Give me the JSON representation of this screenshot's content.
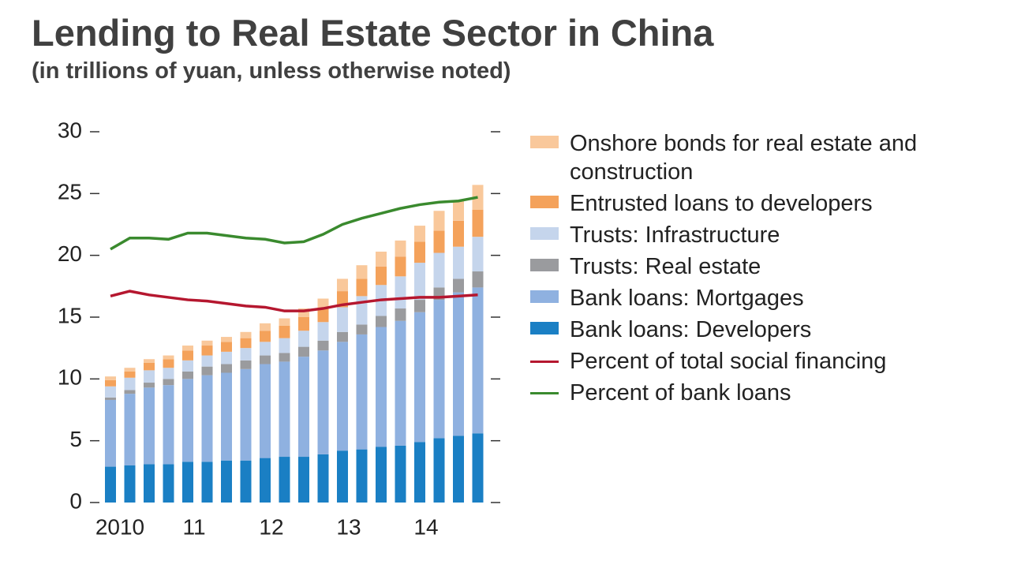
{
  "chart_data": {
    "type": "bar",
    "title": "Lending to Real Estate Sector in China",
    "subtitle": "(in trillions of yuan, unless otherwise noted)",
    "categories": [
      "2010",
      null,
      null,
      null,
      "11",
      null,
      null,
      null,
      "12",
      null,
      null,
      null,
      "13",
      null,
      null,
      null,
      "14",
      null,
      null,
      null
    ],
    "ylim": [
      0,
      30
    ],
    "yticks": [
      0,
      5,
      10,
      15,
      20,
      25,
      30
    ],
    "stacked": true,
    "series": [
      {
        "name": "Onshore bonds for real estate and construction",
        "color": "#f9c89b",
        "values": [
          0.3,
          0.3,
          0.3,
          0.3,
          0.4,
          0.4,
          0.4,
          0.5,
          0.6,
          0.6,
          0.7,
          0.8,
          1.0,
          1.1,
          1.2,
          1.3,
          1.3,
          1.6,
          1.6,
          2.0
        ]
      },
      {
        "name": "Entrusted loans to developers",
        "color": "#f4a25b",
        "values": [
          0.5,
          0.5,
          0.6,
          0.7,
          0.8,
          0.8,
          0.8,
          0.8,
          0.9,
          1.0,
          1.1,
          1.1,
          1.3,
          1.4,
          1.5,
          1.6,
          1.7,
          1.8,
          2.1,
          2.2
        ]
      },
      {
        "name": "Trusts: Infrastructure",
        "color": "#c5d5ec",
        "values": [
          0.9,
          1.0,
          1.0,
          0.9,
          0.9,
          0.9,
          1.0,
          1.0,
          1.1,
          1.2,
          1.3,
          1.5,
          2.0,
          2.3,
          2.5,
          2.6,
          3.0,
          2.8,
          2.6,
          2.8
        ]
      },
      {
        "name": "Trusts: Real estate",
        "color": "#9a9b9e",
        "values": [
          0.2,
          0.3,
          0.4,
          0.5,
          0.6,
          0.7,
          0.7,
          0.7,
          0.7,
          0.7,
          0.8,
          0.8,
          0.8,
          0.8,
          0.9,
          1.0,
          1.0,
          1.0,
          1.1,
          1.3
        ]
      },
      {
        "name": "Bank loans: Mortgages",
        "color": "#8fb1e0",
        "values": [
          5.4,
          5.8,
          6.2,
          6.4,
          6.7,
          7.0,
          7.1,
          7.4,
          7.6,
          7.7,
          8.1,
          8.4,
          8.8,
          9.3,
          9.7,
          10.1,
          10.5,
          11.2,
          11.6,
          11.8
        ]
      },
      {
        "name": "Bank loans: Developers",
        "color": "#1a7fc4",
        "values": [
          2.9,
          3.0,
          3.1,
          3.1,
          3.3,
          3.3,
          3.4,
          3.4,
          3.6,
          3.7,
          3.7,
          3.9,
          4.2,
          4.3,
          4.5,
          4.6,
          4.9,
          5.2,
          5.4,
          5.6
        ]
      },
      {
        "name": "Percent of total social financing",
        "color": "#b5172f",
        "type": "line",
        "values": [
          16.7,
          17.1,
          16.8,
          16.6,
          16.4,
          16.3,
          16.1,
          15.9,
          15.8,
          15.5,
          15.5,
          15.7,
          16.0,
          16.2,
          16.4,
          16.5,
          16.6,
          16.6,
          16.7,
          16.8
        ]
      },
      {
        "name": "Percent of bank loans",
        "color": "#3a8a2e",
        "type": "line",
        "values": [
          20.5,
          21.4,
          21.4,
          21.3,
          21.8,
          21.8,
          21.6,
          21.4,
          21.3,
          21.0,
          21.1,
          21.7,
          22.5,
          23.0,
          23.4,
          23.8,
          24.1,
          24.3,
          24.4,
          24.7
        ]
      }
    ]
  }
}
